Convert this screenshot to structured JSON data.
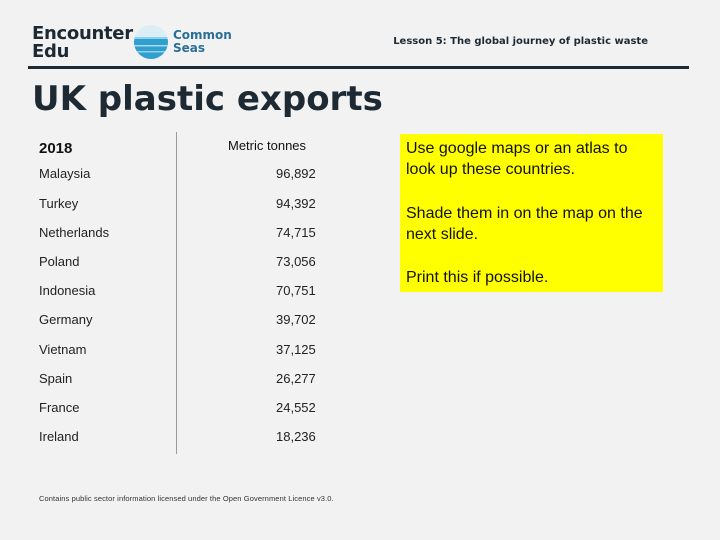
{
  "header": {
    "logo_encounter_line1": "Encounter",
    "logo_encounter_line2": "Edu",
    "logo_cs_line1": "Common",
    "logo_cs_line2": "Seas",
    "lesson": "Lesson 5: The global journey of plastic waste"
  },
  "title": "UK plastic exports",
  "table": {
    "year_header": "2018",
    "unit_header": "Metric tonnes",
    "rows": [
      {
        "country": "Malaysia",
        "value": "96,892"
      },
      {
        "country": "Turkey",
        "value": "94,392"
      },
      {
        "country": "Netherlands",
        "value": "74,715"
      },
      {
        "country": "Poland",
        "value": "73,056"
      },
      {
        "country": "Indonesia",
        "value": "70,751"
      },
      {
        "country": "Germany",
        "value": "39,702"
      },
      {
        "country": "Vietnam",
        "value": "37,125"
      },
      {
        "country": "Spain",
        "value": "26,277"
      },
      {
        "country": "France",
        "value": "24,552"
      },
      {
        "country": "Ireland",
        "value": "18,236"
      }
    ]
  },
  "note": {
    "p1": "Use google maps or an atlas to look up these countries.",
    "p2": "Shade them in on the map on the next slide.",
    "p3": "Print this if possible.",
    "background": "#ffff00"
  },
  "footer": "Contains public sector information licensed under the Open Government Licence v3.0."
}
